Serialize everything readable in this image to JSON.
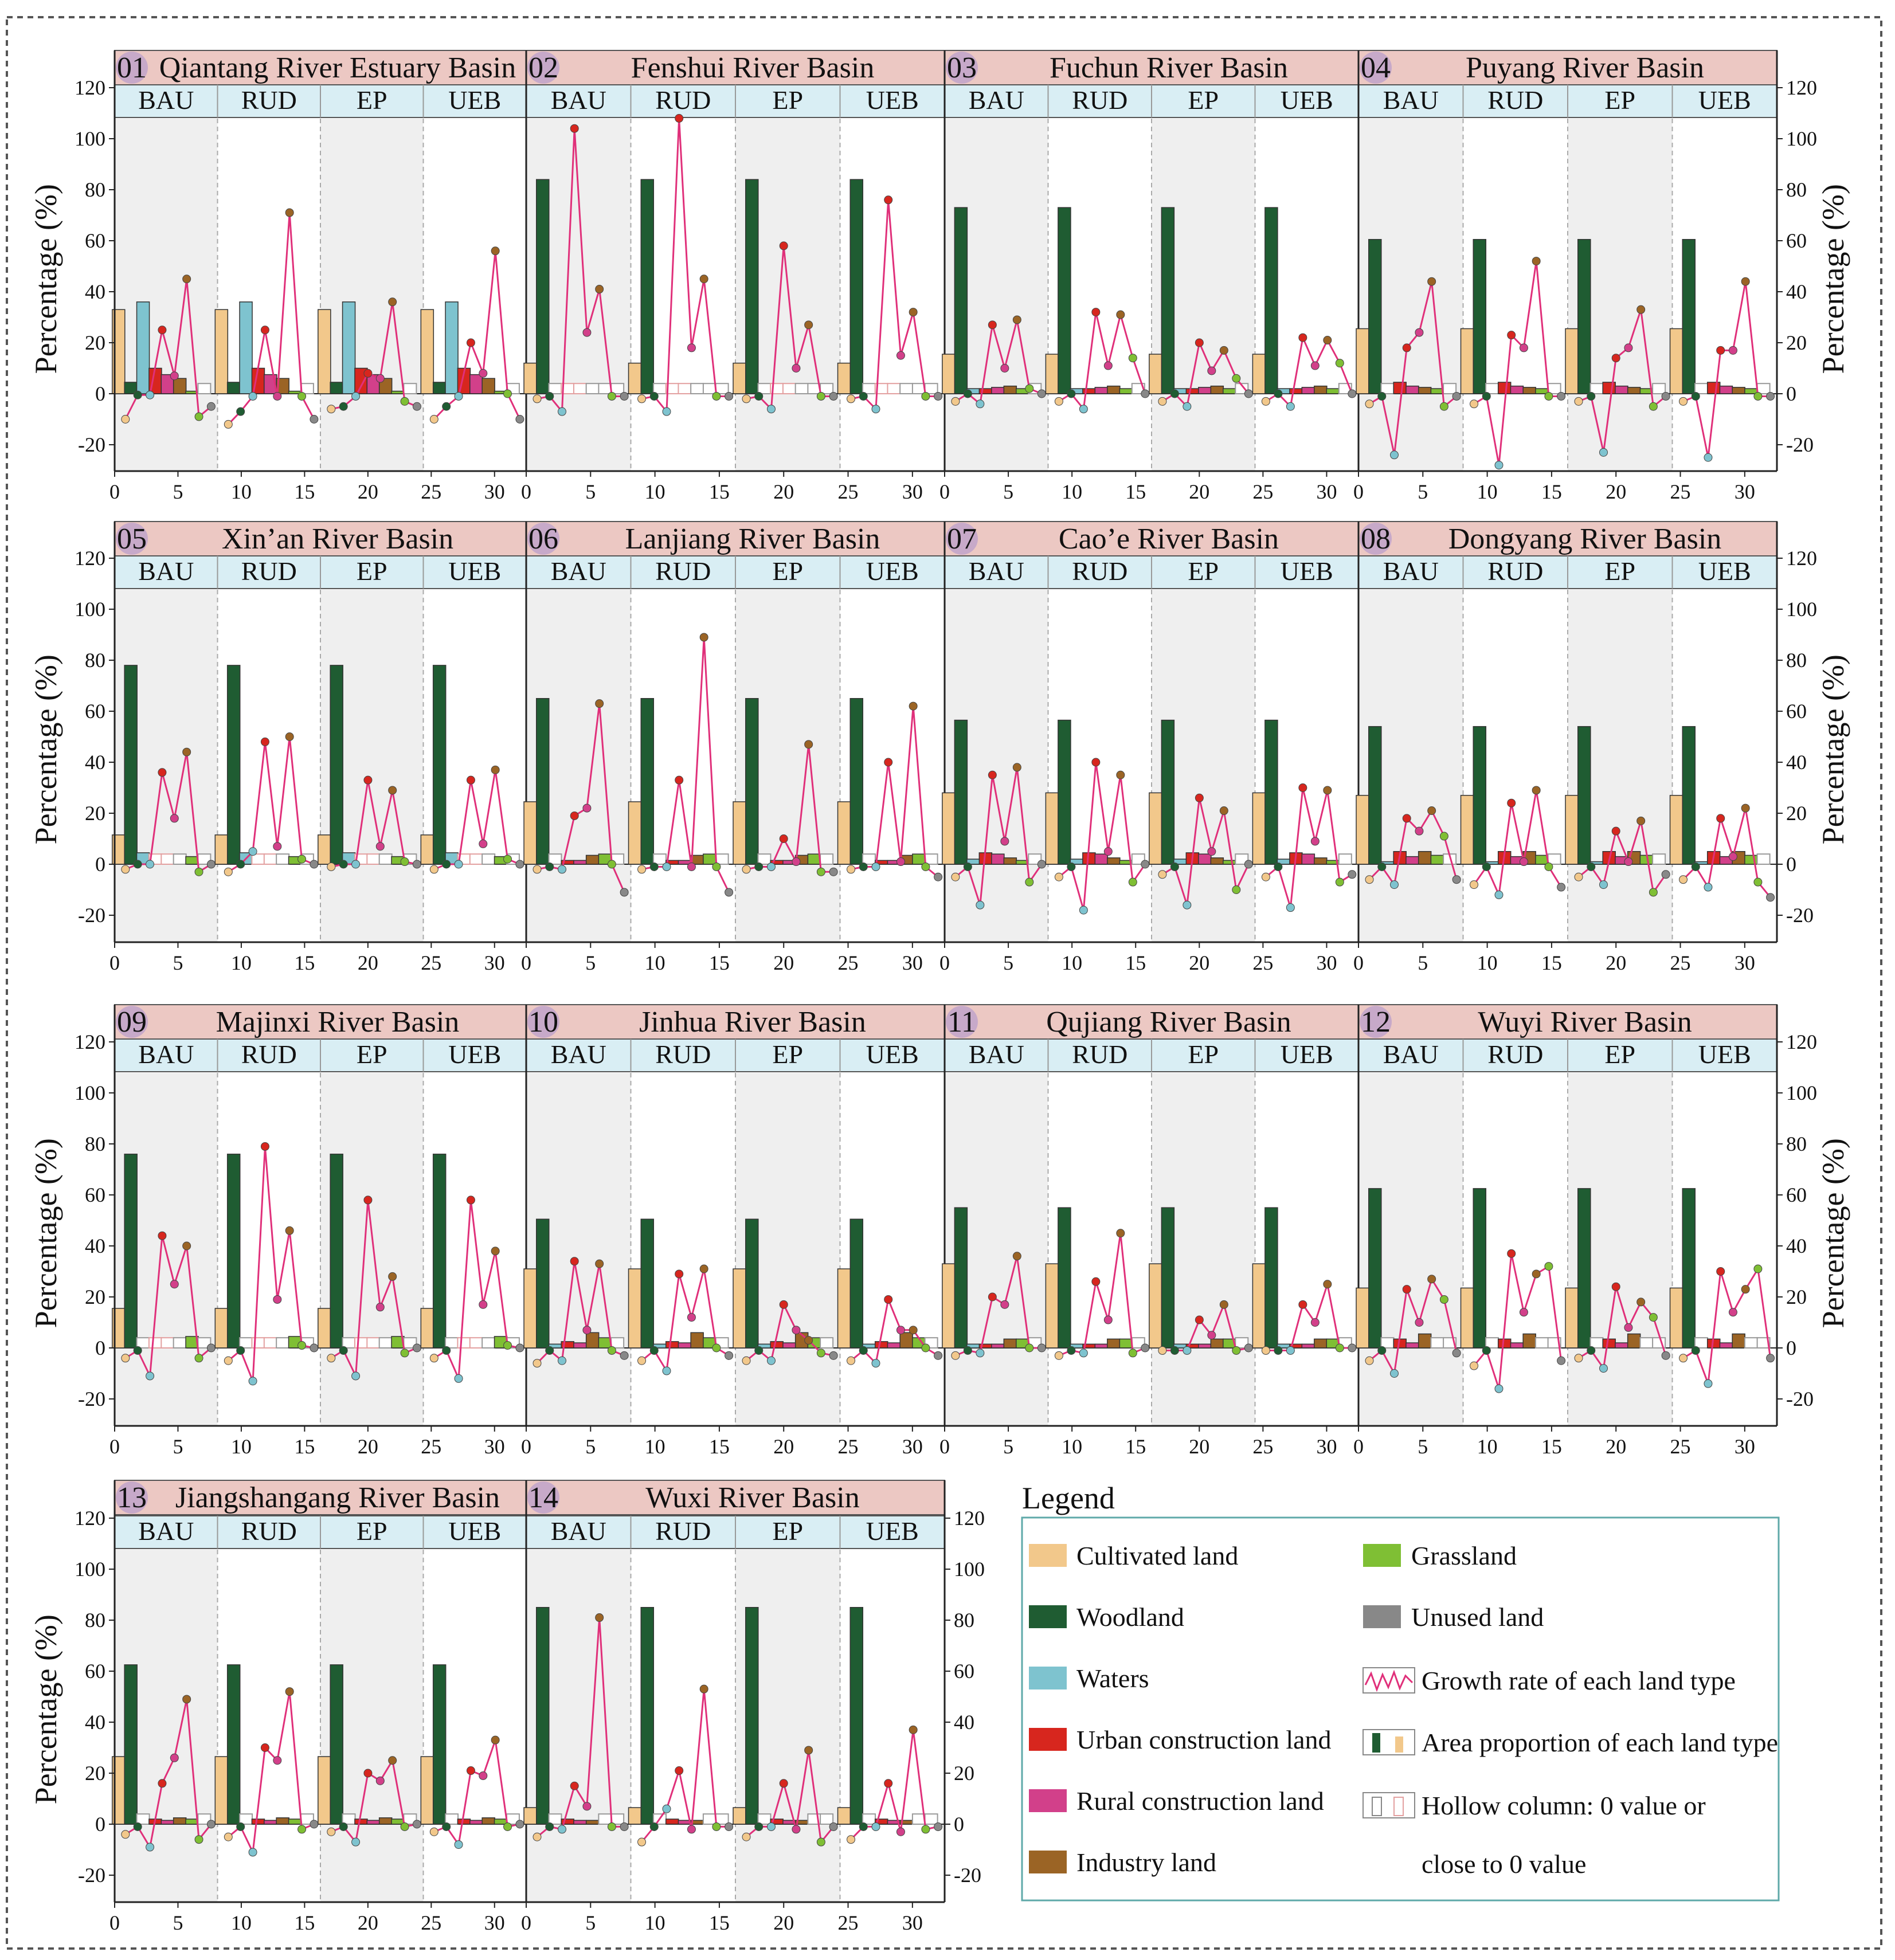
{
  "figure": {
    "y_axis_label": "Percentage (%)",
    "scenarios": [
      "BAU",
      "RUD",
      "EP",
      "UEB"
    ],
    "y_ticks": [
      "120",
      "100",
      "80",
      "60",
      "40",
      "20",
      "0",
      "-20"
    ],
    "x_ticks": [
      "0",
      "5",
      "10",
      "15",
      "20",
      "25",
      "30"
    ],
    "colors": {
      "cultivated": "#f2c88b",
      "woodland": "#1f5c32",
      "waters": "#7ec3cf",
      "urban": "#d7261e",
      "rural": "#d2408a",
      "industry": "#9b6425",
      "grassland": "#7fbf34",
      "unused": "#888888",
      "growth_line": "#e0307a",
      "title_bg": "#ecc8c3",
      "num_bg": "#c7a9c9",
      "scenario_bg": "#d9eef4",
      "shade_bg": "#efefef"
    }
  },
  "chart_data": [
    {
      "type": "bar+line",
      "panel": "01",
      "name": "Qiantang River Estuary Basin",
      "proportions": [
        33,
        4.5,
        36,
        10,
        7.5,
        6,
        1,
        0.3
      ],
      "growth": [
        [
          -10,
          -0.5,
          -0.5,
          25,
          7,
          45,
          -9,
          -5
        ],
        [
          -12,
          -7,
          -1,
          25,
          -1,
          71,
          -1,
          -10
        ],
        [
          -6,
          -5,
          -1,
          8,
          6,
          36,
          -3,
          -5
        ],
        [
          -10,
          -5,
          -1,
          20,
          8,
          56,
          0,
          -10
        ]
      ]
    },
    {
      "type": "bar+line",
      "panel": "02",
      "name": "Fenshui River Basin",
      "proportions": [
        12,
        84,
        0.3,
        0.4,
        0.3,
        0.2,
        0.2,
        0.1
      ],
      "growth": [
        [
          -2,
          -1,
          -7,
          104,
          24,
          41,
          -1,
          -1
        ],
        [
          -2,
          -1,
          -7,
          108,
          18,
          45,
          -1,
          -1
        ],
        [
          -2,
          -1,
          -6,
          58,
          10,
          27,
          -1,
          -1
        ],
        [
          -2,
          -1,
          -6,
          76,
          15,
          32,
          -1,
          -1
        ]
      ]
    },
    {
      "type": "bar+line",
      "panel": "03",
      "name": "Fuchun River Basin",
      "proportions": [
        15.5,
        73,
        2,
        2,
        2.5,
        3,
        2,
        0.2
      ],
      "growth": [
        [
          -3,
          0,
          -4,
          27,
          10,
          29,
          2,
          0
        ],
        [
          -3,
          0,
          -6,
          32,
          11,
          31,
          14,
          0
        ],
        [
          -3,
          0,
          -5,
          20,
          9,
          17,
          6,
          0
        ],
        [
          -3,
          0,
          -5,
          22,
          11,
          21,
          12,
          0
        ]
      ]
    },
    {
      "type": "bar+line",
      "panel": "04",
      "name": "Puyang River Basin",
      "proportions": [
        25.5,
        60.5,
        0.4,
        4.5,
        3,
        2.5,
        2,
        0.3
      ],
      "growth": [
        [
          -4,
          -1,
          -24,
          18,
          24,
          44,
          -5,
          -1
        ],
        [
          -4,
          -1,
          -28,
          23,
          18,
          52,
          -1,
          -1
        ],
        [
          -3,
          -1,
          -23,
          14,
          18,
          33,
          -5,
          -1
        ],
        [
          -3,
          -1,
          -25,
          17,
          17,
          44,
          -1,
          -1
        ]
      ]
    },
    {
      "type": "bar+line",
      "panel": "05",
      "name": "Xin’an River Basin",
      "proportions": [
        11.5,
        78,
        4.5,
        0.4,
        0.5,
        0.5,
        3,
        0.2
      ],
      "growth": [
        [
          -2,
          0,
          0,
          36,
          18,
          44,
          -3,
          0
        ],
        [
          -3,
          0,
          5,
          48,
          7,
          50,
          2,
          0
        ],
        [
          -1,
          0,
          0,
          33,
          7,
          29,
          1,
          0
        ],
        [
          -2,
          0,
          0,
          33,
          8,
          37,
          2,
          0
        ]
      ]
    },
    {
      "type": "bar+line",
      "panel": "06",
      "name": "Lanjiang River Basin",
      "proportions": [
        24.5,
        65,
        0.5,
        1.5,
        1.5,
        3.5,
        4,
        0.1
      ],
      "growth": [
        [
          -2,
          -1,
          -2,
          19,
          22,
          63,
          0,
          -11
        ],
        [
          -2,
          -1,
          -1,
          33,
          -1,
          89,
          -1,
          -11
        ],
        [
          -2,
          -1,
          -1,
          10,
          1,
          47,
          -3,
          -3
        ],
        [
          -2,
          -1,
          -1,
          40,
          1,
          62,
          -1,
          -5
        ]
      ]
    },
    {
      "type": "bar+line",
      "panel": "07",
      "name": "Cao’e River Basin",
      "proportions": [
        28,
        56.5,
        2,
        4.5,
        4,
        2.5,
        1.5,
        0.2
      ],
      "growth": [
        [
          -5,
          -1,
          -16,
          35,
          9,
          38,
          -7,
          0
        ],
        [
          -5,
          -1,
          -18,
          40,
          5,
          35,
          -7,
          0
        ],
        [
          -4,
          -1,
          -16,
          26,
          5,
          21,
          -10,
          0
        ],
        [
          -5,
          -1,
          -17,
          30,
          9,
          29,
          -7,
          -4
        ]
      ]
    },
    {
      "type": "bar+line",
      "panel": "08",
      "name": "Dongyang River Basin",
      "proportions": [
        27,
        54,
        1,
        5,
        3,
        5,
        3.5,
        0.2
      ],
      "growth": [
        [
          -6,
          -1,
          -8,
          18,
          13,
          21,
          11,
          -6
        ],
        [
          -8,
          -1,
          -12,
          24,
          1,
          29,
          -1,
          -9
        ],
        [
          -5,
          -1,
          -8,
          13,
          1,
          17,
          -11,
          -4
        ],
        [
          -6,
          -1,
          -9,
          18,
          3,
          22,
          -7,
          -13
        ]
      ]
    },
    {
      "type": "bar+line",
      "panel": "09",
      "name": "Majinxi River Basin",
      "proportions": [
        15.5,
        76,
        0.4,
        0.3,
        0.3,
        0.5,
        4.5,
        0.1
      ],
      "growth": [
        [
          -4,
          -1,
          -11,
          44,
          25,
          40,
          -4,
          0
        ],
        [
          -5,
          -1,
          -13,
          79,
          19,
          46,
          1,
          0
        ],
        [
          -4,
          -1,
          -11,
          58,
          16,
          28,
          -2,
          0
        ],
        [
          -4,
          -1,
          -12,
          58,
          17,
          38,
          1,
          0
        ]
      ]
    },
    {
      "type": "bar+line",
      "panel": "10",
      "name": "Jinhua River Basin",
      "proportions": [
        31,
        50.5,
        1.5,
        2.5,
        2,
        6,
        4,
        0.2
      ],
      "growth": [
        [
          -6,
          -1,
          -5,
          34,
          7,
          33,
          -1,
          -3
        ],
        [
          -5,
          -1,
          -9,
          29,
          12,
          31,
          0,
          -3
        ],
        [
          -5,
          -1,
          -5,
          17,
          7,
          3,
          -2,
          -3
        ],
        [
          -5,
          -1,
          -6,
          19,
          7,
          7,
          0,
          -3
        ]
      ]
    },
    {
      "type": "bar+line",
      "panel": "11",
      "name": "Qujiang River Basin",
      "proportions": [
        33,
        55,
        1.5,
        1.5,
        1.5,
        3.5,
        3.5,
        0.2
      ],
      "growth": [
        [
          -3,
          -1,
          -2,
          20,
          17,
          36,
          0,
          0
        ],
        [
          -3,
          -1,
          -2,
          26,
          11,
          45,
          -2,
          0
        ],
        [
          -1,
          -1,
          -1,
          11,
          5,
          17,
          -1,
          0
        ],
        [
          -1,
          -1,
          -1,
          17,
          10,
          25,
          0,
          0
        ]
      ]
    },
    {
      "type": "bar+line",
      "panel": "12",
      "name": "Wuyi River Basin",
      "proportions": [
        23.5,
        62.5,
        0.5,
        3.5,
        2,
        5.5,
        0.5,
        0.1
      ],
      "growth": [
        [
          -5,
          -1,
          -10,
          23,
          10,
          27,
          19,
          -2
        ],
        [
          -7,
          -1,
          -16,
          37,
          14,
          29,
          32,
          -5
        ],
        [
          -4,
          -1,
          -8,
          24,
          8,
          18,
          12,
          -3
        ],
        [
          -4,
          -1,
          -14,
          30,
          14,
          23,
          31,
          -4
        ]
      ]
    },
    {
      "type": "bar+line",
      "panel": "13",
      "name": "Jiangshangang River Basin",
      "proportions": [
        26.5,
        62.5,
        0.5,
        2,
        1.5,
        2.5,
        2,
        0.2
      ],
      "growth": [
        [
          -4,
          -1,
          -9,
          16,
          26,
          49,
          -6,
          0
        ],
        [
          -5,
          -1,
          -11,
          30,
          25,
          52,
          -2,
          0
        ],
        [
          -3,
          -1,
          -7,
          20,
          17,
          25,
          -1,
          0
        ],
        [
          -3,
          -1,
          -8,
          21,
          19,
          33,
          -1,
          0
        ]
      ]
    },
    {
      "type": "bar+line",
      "panel": "14",
      "name": "Wuxi River Basin",
      "proportions": [
        6.5,
        85,
        0.3,
        2,
        1.5,
        1.5,
        0.5,
        0.1
      ],
      "growth": [
        [
          -5,
          -1,
          -2,
          15,
          7,
          81,
          -1,
          -1
        ],
        [
          -7,
          -1,
          6,
          21,
          -2,
          53,
          -1,
          -1
        ],
        [
          -5,
          -1,
          -1,
          16,
          -2,
          29,
          -7,
          -1
        ],
        [
          -6,
          -1,
          -1,
          16,
          -3,
          37,
          -2,
          -1
        ]
      ]
    }
  ],
  "legend": {
    "title": "Legend",
    "items": {
      "cultivated": "Cultivated land",
      "woodland": "Woodland",
      "waters": "Waters",
      "urban": "Urban construction land",
      "rural": "Rural construction land",
      "industry": "Industry land",
      "grassland": "Grassland",
      "unused": "Unused land",
      "growth": "Growth rate of each land type",
      "area": "Area proportion of each land type",
      "hollow_1": "Hollow column: 0 value or",
      "hollow_2": "close to 0 value"
    }
  }
}
